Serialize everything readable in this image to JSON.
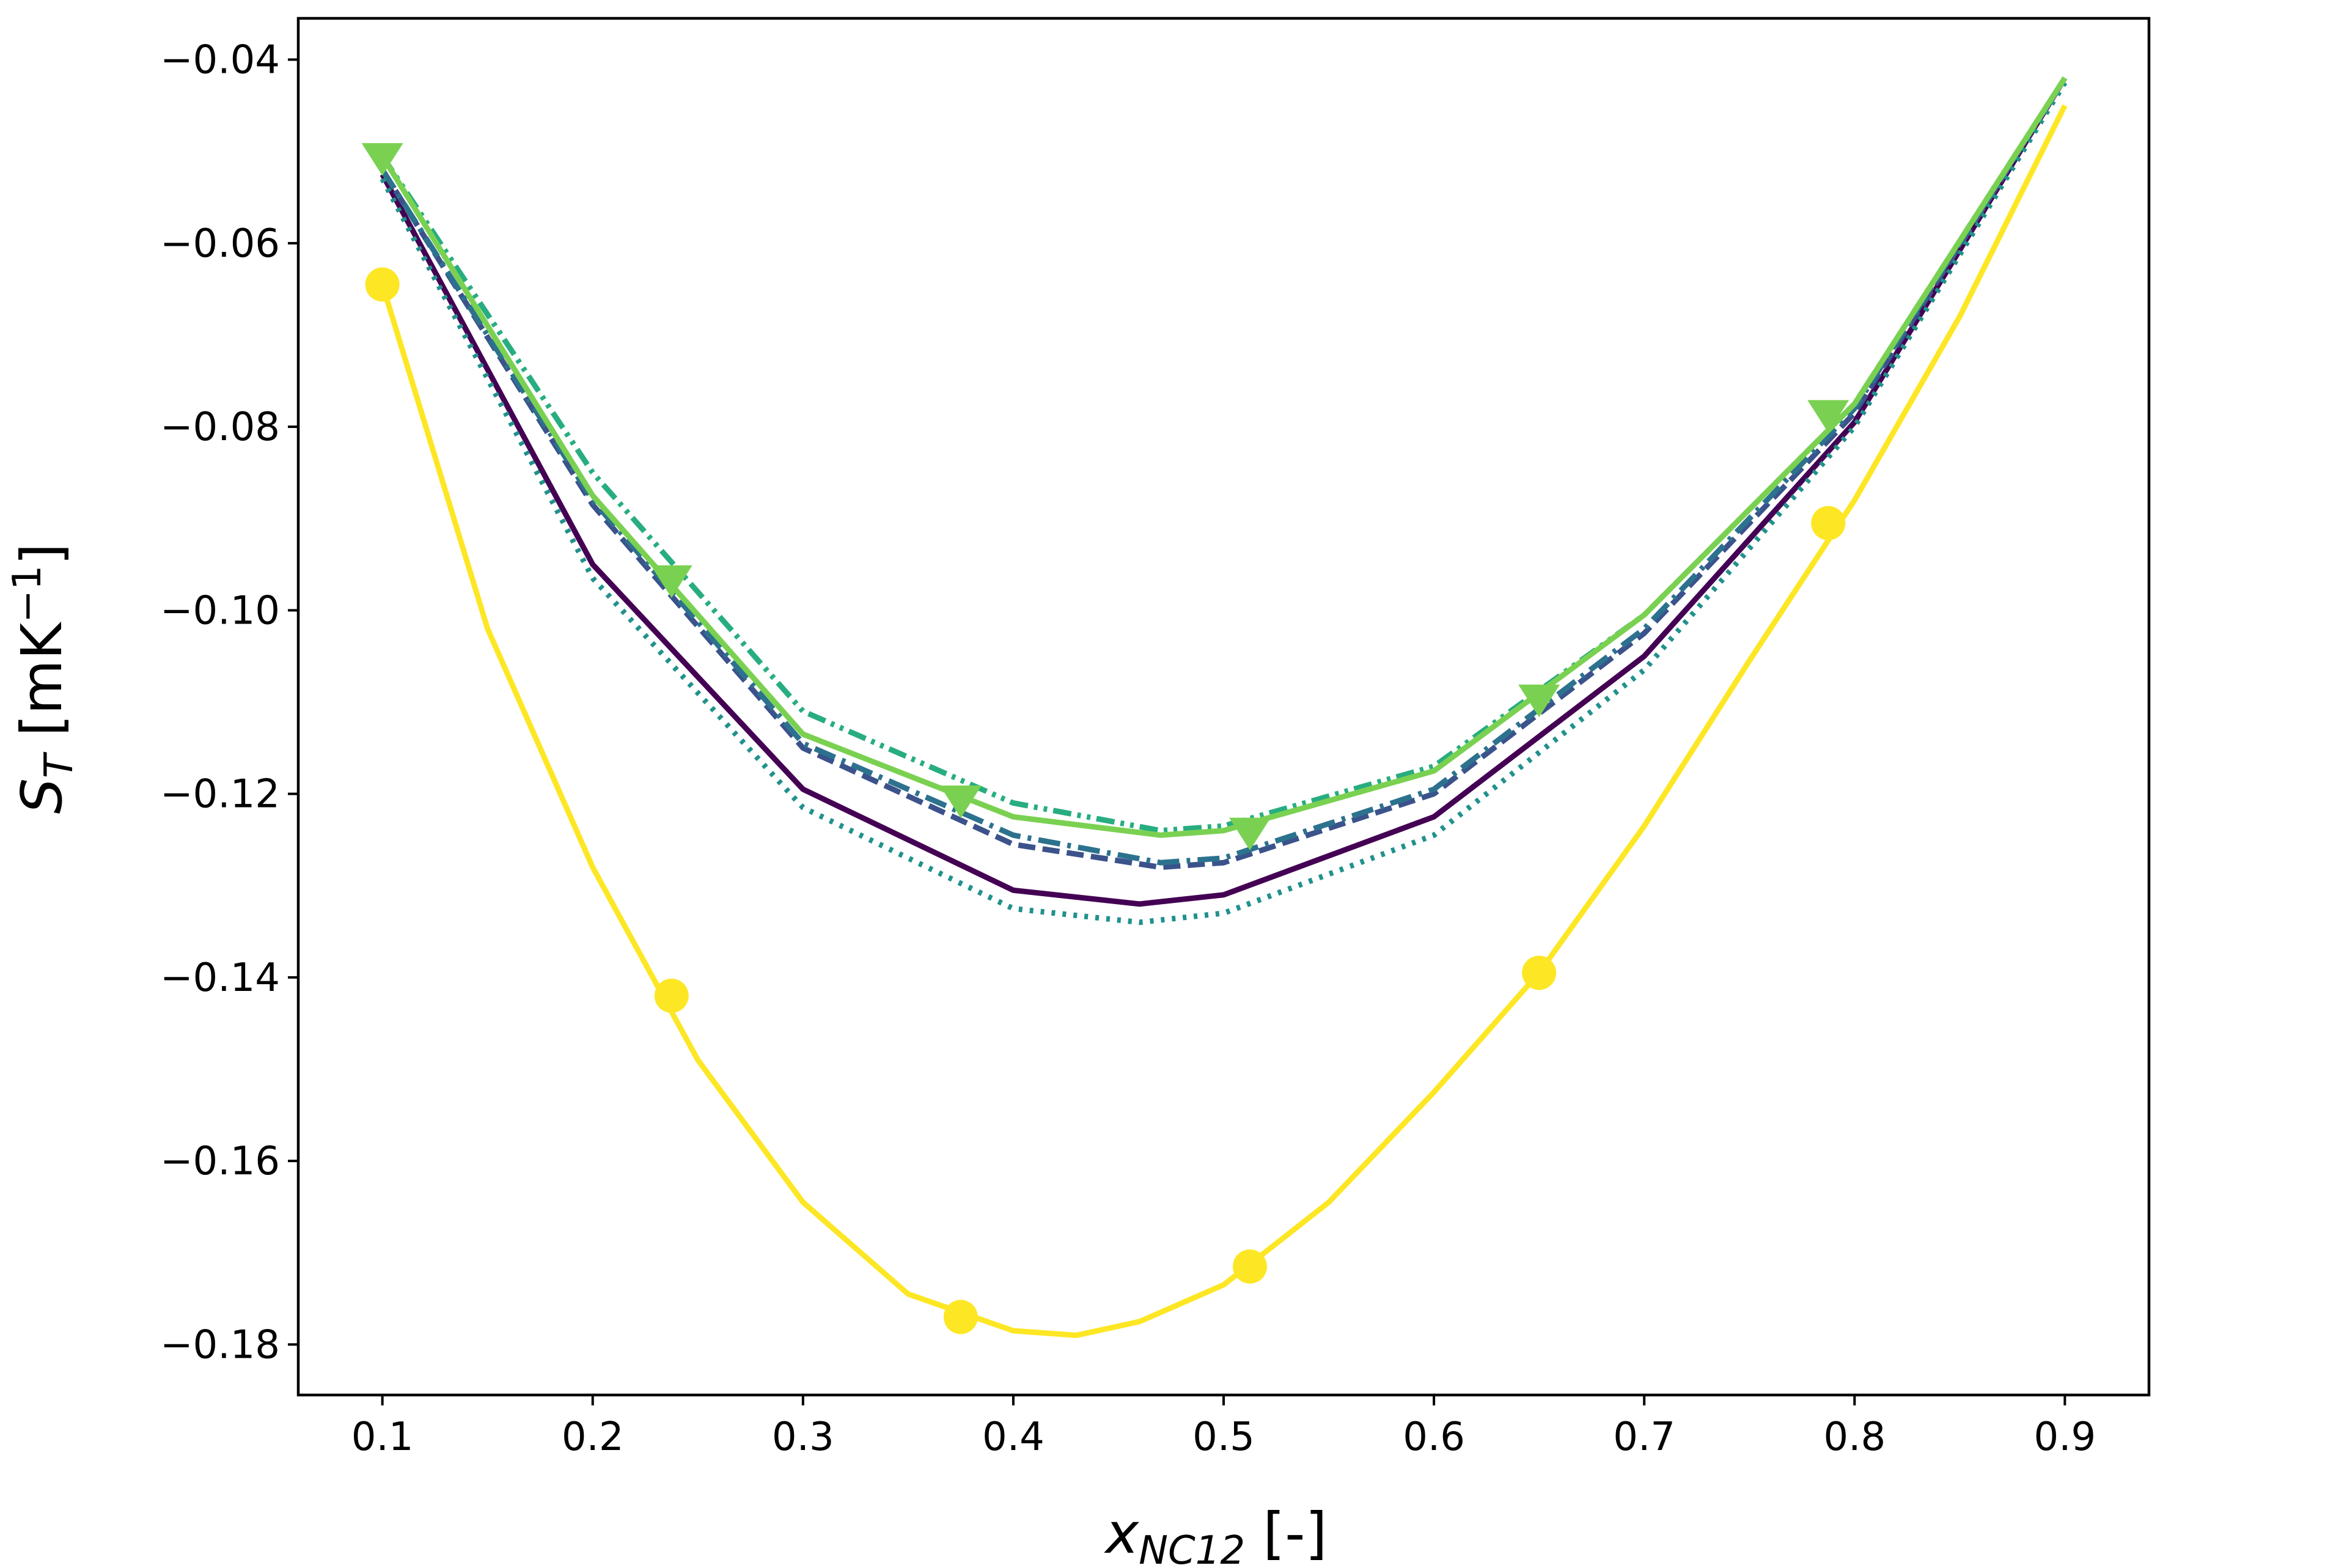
{
  "chart_data": {
    "type": "line",
    "xlabel": {
      "main": "x",
      "sub": "NC12",
      "suffix": " [-]"
    },
    "ylabel": {
      "main": "S",
      "sub": "T",
      "pre": " [mK",
      "sup": "−1",
      "post": "]"
    },
    "xlim": [
      0.06,
      0.94
    ],
    "ylim": [
      -0.1855,
      -0.0355
    ],
    "xticks": [
      0.1,
      0.2,
      0.3,
      0.4,
      0.5,
      0.6,
      0.7,
      0.8,
      0.9
    ],
    "xtick_labels": [
      "0.1",
      "0.2",
      "0.3",
      "0.4",
      "0.5",
      "0.6",
      "0.7",
      "0.8",
      "0.9"
    ],
    "yticks": [
      -0.18,
      -0.16,
      -0.14,
      -0.12,
      -0.1,
      -0.08,
      -0.06,
      -0.04
    ],
    "ytick_labels": [
      "−0.18",
      "−0.16",
      "−0.14",
      "−0.12",
      "−0.10",
      "−0.08",
      "−0.06",
      "−0.04"
    ],
    "grid": false,
    "series": [
      {
        "color": "#440154",
        "style": "solid",
        "x": [
          0.1,
          0.2,
          0.3,
          0.4,
          0.46,
          0.5,
          0.6,
          0.7,
          0.8,
          0.9
        ],
        "y": [
          -0.0525,
          -0.095,
          -0.1195,
          -0.1305,
          -0.132,
          -0.131,
          -0.1225,
          -0.105,
          -0.0795,
          -0.042
        ]
      },
      {
        "color": "#3b528b",
        "style": "dashed",
        "x": [
          0.1,
          0.2,
          0.3,
          0.4,
          0.47,
          0.5,
          0.6,
          0.7,
          0.8,
          0.9
        ],
        "y": [
          -0.052,
          -0.0885,
          -0.115,
          -0.1255,
          -0.128,
          -0.1275,
          -0.12,
          -0.1025,
          -0.0785,
          -0.042
        ]
      },
      {
        "color": "#2c728e",
        "style": "dashdot",
        "x": [
          0.1,
          0.2,
          0.3,
          0.4,
          0.47,
          0.5,
          0.6,
          0.7,
          0.8,
          0.9
        ],
        "y": [
          -0.052,
          -0.088,
          -0.1145,
          -0.1245,
          -0.1275,
          -0.127,
          -0.1195,
          -0.102,
          -0.078,
          -0.042
        ]
      },
      {
        "color": "#21918c",
        "style": "dotted",
        "x": [
          0.1,
          0.2,
          0.3,
          0.4,
          0.46,
          0.5,
          0.6,
          0.7,
          0.8,
          0.9
        ],
        "y": [
          -0.053,
          -0.0965,
          -0.1215,
          -0.1325,
          -0.134,
          -0.133,
          -0.1245,
          -0.1065,
          -0.08,
          -0.0425
        ]
      },
      {
        "color": "#27ad81",
        "style": "dashdotdot",
        "x": [
          0.1,
          0.2,
          0.3,
          0.4,
          0.47,
          0.5,
          0.6,
          0.7,
          0.8,
          0.9
        ],
        "y": [
          -0.0505,
          -0.085,
          -0.111,
          -0.121,
          -0.124,
          -0.1235,
          -0.117,
          -0.1005,
          -0.0775,
          -0.042
        ]
      },
      {
        "color": "#7ad151",
        "style": "solid",
        "marker": "triangle",
        "x": [
          0.1,
          0.2,
          0.3,
          0.4,
          0.47,
          0.5,
          0.6,
          0.7,
          0.8,
          0.9
        ],
        "y": [
          -0.0505,
          -0.0875,
          -0.1135,
          -0.1225,
          -0.1245,
          -0.124,
          -0.1175,
          -0.1005,
          -0.0775,
          -0.042
        ],
        "marker_x": [
          0.1,
          0.2375,
          0.375,
          0.5125,
          0.65,
          0.7875
        ],
        "marker_y": [
          -0.0505,
          -0.0965,
          -0.1205,
          -0.124,
          -0.1095,
          -0.0785
        ]
      },
      {
        "color": "#fde725",
        "style": "solid",
        "marker": "circle",
        "x": [
          0.1,
          0.15,
          0.2,
          0.25,
          0.3,
          0.35,
          0.4,
          0.43,
          0.46,
          0.5,
          0.55,
          0.6,
          0.65,
          0.7,
          0.75,
          0.8,
          0.85,
          0.9
        ],
        "y": [
          -0.0645,
          -0.102,
          -0.128,
          -0.149,
          -0.1645,
          -0.1745,
          -0.1785,
          -0.179,
          -0.1775,
          -0.1735,
          -0.1645,
          -0.1525,
          -0.1395,
          -0.1235,
          -0.1055,
          -0.088,
          -0.068,
          -0.045
        ],
        "marker_x": [
          0.1,
          0.2375,
          0.375,
          0.5125,
          0.65,
          0.7875
        ],
        "marker_y": [
          -0.0645,
          -0.142,
          -0.177,
          -0.1715,
          -0.1395,
          -0.0905
        ]
      }
    ]
  }
}
